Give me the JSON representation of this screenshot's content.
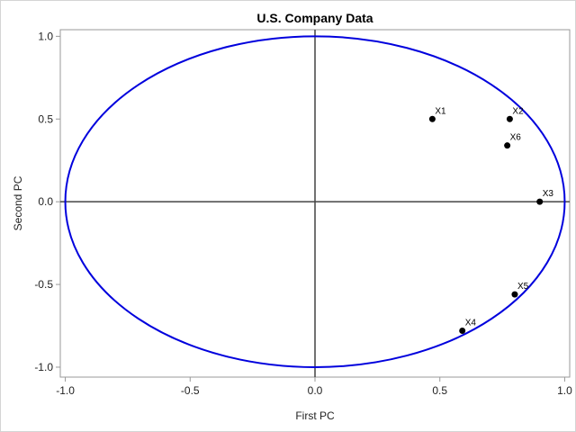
{
  "chart_data": {
    "type": "scatter",
    "title": "U.S. Company Data",
    "xlabel": "First PC",
    "ylabel": "Second PC",
    "xlim": [
      -1.02,
      1.02
    ],
    "ylim": [
      -1.06,
      1.04
    ],
    "x_ticks": [
      -1.0,
      -0.5,
      0.0,
      0.5,
      1.0
    ],
    "x_tick_labels": [
      "-1.0",
      "-0.5",
      "0.0",
      "0.5",
      "1.0"
    ],
    "y_ticks": [
      -1.0,
      -0.5,
      0.0,
      0.5,
      1.0
    ],
    "y_tick_labels": [
      "-1.0",
      "-0.5",
      "0.0",
      "0.5",
      "1.0"
    ],
    "reference_lines": {
      "x": 0,
      "y": 0
    },
    "circle": {
      "center": [
        0,
        0
      ],
      "radius": 1,
      "color": "#0000dd"
    },
    "grid": false,
    "legend": "none",
    "points": [
      {
        "label": "X1",
        "x": 0.47,
        "y": 0.5
      },
      {
        "label": "X2",
        "x": 0.78,
        "y": 0.5
      },
      {
        "label": "X6",
        "x": 0.77,
        "y": 0.34
      },
      {
        "label": "X3",
        "x": 0.9,
        "y": 0.0
      },
      {
        "label": "X5",
        "x": 0.8,
        "y": -0.56
      },
      {
        "label": "X4",
        "x": 0.59,
        "y": -0.78
      }
    ],
    "colors": {
      "points": "#000000",
      "reference_lines": "#444444",
      "frame": "#999999"
    }
  }
}
